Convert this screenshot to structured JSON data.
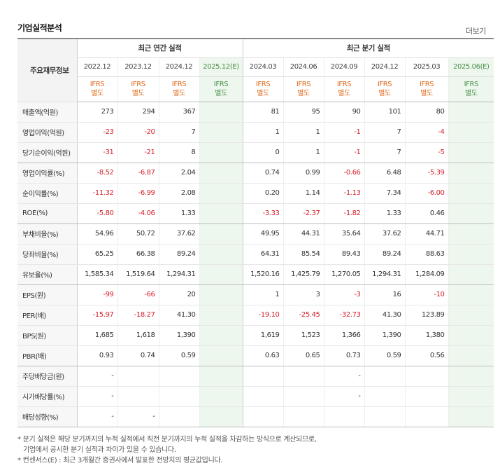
{
  "title": "기업실적분석",
  "more_label": "더보기",
  "header": {
    "corner": "주요재무정보",
    "annual_group": "최근 연간 실적",
    "quarter_group": "최근 분기 실적",
    "annual_periods": [
      "2022.12",
      "2023.12",
      "2024.12",
      "2025.12(E)"
    ],
    "quarter_periods": [
      "2024.03",
      "2024.06",
      "2024.09",
      "2024.12",
      "2025.03",
      "2025.06(E)"
    ],
    "basis_line1": "IFRS",
    "basis_line2": "별도"
  },
  "rows": [
    {
      "label": "매출액(억원)",
      "annual": [
        "273",
        "294",
        "367",
        ""
      ],
      "quarter": [
        "81",
        "95",
        "90",
        "101",
        "80",
        ""
      ]
    },
    {
      "label": "영업이익(억원)",
      "annual": [
        "-23",
        "-20",
        "7",
        ""
      ],
      "quarter": [
        "1",
        "1",
        "-1",
        "7",
        "-4",
        ""
      ]
    },
    {
      "label": "당기순이익(억원)",
      "annual": [
        "-31",
        "-21",
        "8",
        ""
      ],
      "quarter": [
        "0",
        "1",
        "-1",
        "7",
        "-5",
        ""
      ]
    },
    {
      "label": "영업이익률(%)",
      "annual": [
        "-8.52",
        "-6.87",
        "2.04",
        ""
      ],
      "quarter": [
        "0.74",
        "0.99",
        "-0.66",
        "6.48",
        "-5.39",
        ""
      ]
    },
    {
      "label": "순이익률(%)",
      "annual": [
        "-11.32",
        "-6.99",
        "2.08",
        ""
      ],
      "quarter": [
        "0.20",
        "1.14",
        "-1.13",
        "7.34",
        "-6.00",
        ""
      ]
    },
    {
      "label": "ROE(%)",
      "annual": [
        "-5.80",
        "-4.06",
        "1.33",
        ""
      ],
      "quarter": [
        "-3.33",
        "-2.37",
        "-1.82",
        "1.33",
        "0.46",
        ""
      ]
    },
    {
      "label": "부채비율(%)",
      "annual": [
        "54.96",
        "50.72",
        "37.62",
        ""
      ],
      "quarter": [
        "49.95",
        "44.31",
        "35.64",
        "37.62",
        "44.71",
        ""
      ]
    },
    {
      "label": "당좌비율(%)",
      "annual": [
        "65.25",
        "66.38",
        "89.24",
        ""
      ],
      "quarter": [
        "64.31",
        "85.54",
        "89.43",
        "89.24",
        "88.63",
        ""
      ]
    },
    {
      "label": "유보율(%)",
      "annual": [
        "1,585.34",
        "1,519.64",
        "1,294.31",
        ""
      ],
      "quarter": [
        "1,520.16",
        "1,425.79",
        "1,270.05",
        "1,294.31",
        "1,284.09",
        ""
      ]
    },
    {
      "label": "EPS(원)",
      "annual": [
        "-99",
        "-66",
        "20",
        ""
      ],
      "quarter": [
        "1",
        "3",
        "-3",
        "16",
        "-10",
        ""
      ]
    },
    {
      "label": "PER(배)",
      "annual": [
        "-15.97",
        "-18.27",
        "41.30",
        ""
      ],
      "quarter": [
        "-19.10",
        "-25.45",
        "-32.73",
        "41.30",
        "123.89",
        ""
      ]
    },
    {
      "label": "BPS(원)",
      "annual": [
        "1,685",
        "1,618",
        "1,390",
        ""
      ],
      "quarter": [
        "1,619",
        "1,523",
        "1,366",
        "1,390",
        "1,380",
        ""
      ]
    },
    {
      "label": "PBR(배)",
      "annual": [
        "0.93",
        "0.74",
        "0.59",
        ""
      ],
      "quarter": [
        "0.63",
        "0.65",
        "0.73",
        "0.59",
        "0.56",
        ""
      ]
    },
    {
      "label": "주당배당금(원)",
      "annual": [
        "-",
        "",
        "",
        ""
      ],
      "quarter": [
        "",
        "",
        "-",
        "",
        "",
        ""
      ]
    },
    {
      "label": "시가배당률(%)",
      "annual": [
        "-",
        "",
        "",
        ""
      ],
      "quarter": [
        "",
        "",
        "-",
        "",
        "",
        ""
      ]
    },
    {
      "label": "배당성향(%)",
      "annual": [
        "-",
        "-",
        "",
        ""
      ],
      "quarter": [
        "",
        "",
        "",
        "",
        "",
        ""
      ]
    }
  ],
  "notes": [
    "* 분기 실적은 해당 분기까지의 누적 실적에서 직전 분기까지의 누적 실적을 차감하는 방식으로 계산되므로,",
    "기업에서 공시한 분기 실적과 차이가 있을 수 있습니다.",
    "* 컨센서스(E) : 최근 3개월간 증권사에서 발표한 전망치의 평균값입니다."
  ],
  "colors": {
    "negative": "#d3212b",
    "basis": "#e06a1b",
    "estimate": "#4a8f4a",
    "estimate_bg": "#eef7ee",
    "label_bg": "#f7f7f7"
  }
}
